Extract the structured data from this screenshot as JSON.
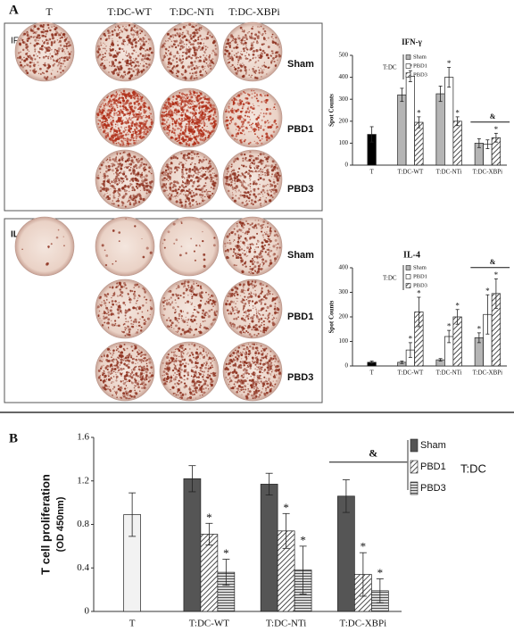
{
  "panels": [
    "A",
    "B"
  ],
  "wells": {
    "columns": [
      "T",
      "T:DC-WT",
      "T:DC-NTi",
      "T:DC-XBPi"
    ],
    "rows": [
      "Sham",
      "PBD1",
      "PBD3"
    ],
    "blocks": [
      "IFN-γ",
      "IL-4"
    ]
  },
  "chart_data": [
    {
      "type": "bar",
      "title": "IFN-γ",
      "ylabel": "Spot Counts",
      "legend_title": "T:DC",
      "categories": [
        "T",
        "T:DC-WT",
        "T:DC-NTi",
        "T:DC-XBPi"
      ],
      "control": {
        "value": 140,
        "error": 35,
        "color": "#000000"
      },
      "series": [
        {
          "name": "Sham",
          "color": "#b5b5b5",
          "values": [
            null,
            320,
            325,
            100
          ],
          "errors": [
            null,
            30,
            35,
            20
          ]
        },
        {
          "name": "PBD1",
          "color": "#ffffff",
          "values": [
            null,
            405,
            400,
            95
          ],
          "errors": [
            null,
            25,
            45,
            20
          ]
        },
        {
          "name": "PBD3",
          "color": "#ffffff",
          "pattern": "diagonal",
          "values": [
            null,
            195,
            200,
            125
          ],
          "errors": [
            null,
            25,
            20,
            20
          ]
        }
      ],
      "ylim": [
        0,
        500
      ],
      "yticks": [
        0,
        100,
        200,
        300,
        400,
        500
      ],
      "annotations": [
        {
          "text": "*",
          "category": 1,
          "series": 1
        },
        {
          "text": "*",
          "category": 1,
          "series": 2
        },
        {
          "text": "*",
          "category": 2,
          "series": 1
        },
        {
          "text": "*",
          "category": 2,
          "series": 2
        },
        {
          "text": "*",
          "category": 3,
          "series": 2
        },
        {
          "text": "&",
          "category": 3
        }
      ]
    },
    {
      "type": "bar",
      "title": "IL-4",
      "ylabel": "Spot Counts",
      "legend_title": "T:DC",
      "categories": [
        "T",
        "T:DC-WT",
        "T:DC-NTi",
        "T:DC-XBPi"
      ],
      "control": {
        "value": 15,
        "error": 5,
        "color": "#000000"
      },
      "series": [
        {
          "name": "Sham",
          "color": "#b5b5b5",
          "values": [
            null,
            15,
            25,
            115
          ],
          "errors": [
            null,
            5,
            5,
            20
          ]
        },
        {
          "name": "PBD1",
          "color": "#ffffff",
          "values": [
            null,
            65,
            120,
            210
          ],
          "errors": [
            null,
            30,
            25,
            80
          ]
        },
        {
          "name": "PBD3",
          "color": "#ffffff",
          "pattern": "diagonal",
          "values": [
            null,
            220,
            200,
            295
          ],
          "errors": [
            null,
            60,
            30,
            60
          ]
        }
      ],
      "ylim": [
        0,
        400
      ],
      "yticks": [
        0,
        100,
        200,
        300,
        400
      ],
      "annotations": [
        {
          "text": "*",
          "category": 1,
          "series": 1
        },
        {
          "text": "*",
          "category": 1,
          "series": 2
        },
        {
          "text": "*",
          "category": 2,
          "series": 1
        },
        {
          "text": "*",
          "category": 2,
          "series": 2
        },
        {
          "text": "*",
          "category": 3,
          "series": 0
        },
        {
          "text": "*",
          "category": 3,
          "series": 1
        },
        {
          "text": "*",
          "category": 3,
          "series": 2
        },
        {
          "text": "&",
          "category": 3
        }
      ]
    },
    {
      "type": "bar",
      "ylabel": "T cell proliferation",
      "ylabel_sub": "(OD 450nm)",
      "legend_title": "T:DC",
      "categories": [
        "T",
        "T:DC-WT",
        "T:DC-NTi",
        "T:DC-XBPi"
      ],
      "control": {
        "value": 0.89,
        "error": 0.2,
        "color": "#f2f2f2"
      },
      "series": [
        {
          "name": "Sham",
          "color": "#555555",
          "values": [
            null,
            1.22,
            1.17,
            1.06
          ],
          "errors": [
            null,
            0.12,
            0.1,
            0.15
          ]
        },
        {
          "name": "PBD1",
          "color": "#ffffff",
          "pattern": "diagonal",
          "values": [
            null,
            0.71,
            0.74,
            0.34
          ],
          "errors": [
            null,
            0.1,
            0.16,
            0.2
          ]
        },
        {
          "name": "PBD3",
          "color": "#d8d8d8",
          "pattern": "horizontal",
          "values": [
            null,
            0.36,
            0.38,
            0.19
          ],
          "errors": [
            null,
            0.12,
            0.22,
            0.11
          ]
        }
      ],
      "ylim": [
        0,
        1.6
      ],
      "yticks": [
        0,
        0.4,
        0.8,
        1.2,
        1.6
      ],
      "annotations": [
        {
          "text": "*",
          "category": 1,
          "series": 1
        },
        {
          "text": "*",
          "category": 1,
          "series": 2
        },
        {
          "text": "*",
          "category": 2,
          "series": 1
        },
        {
          "text": "*",
          "category": 2,
          "series": 2
        },
        {
          "text": "*",
          "category": 3,
          "series": 1
        },
        {
          "text": "*",
          "category": 3,
          "series": 2
        },
        {
          "text": "&",
          "category": 3
        }
      ]
    }
  ]
}
